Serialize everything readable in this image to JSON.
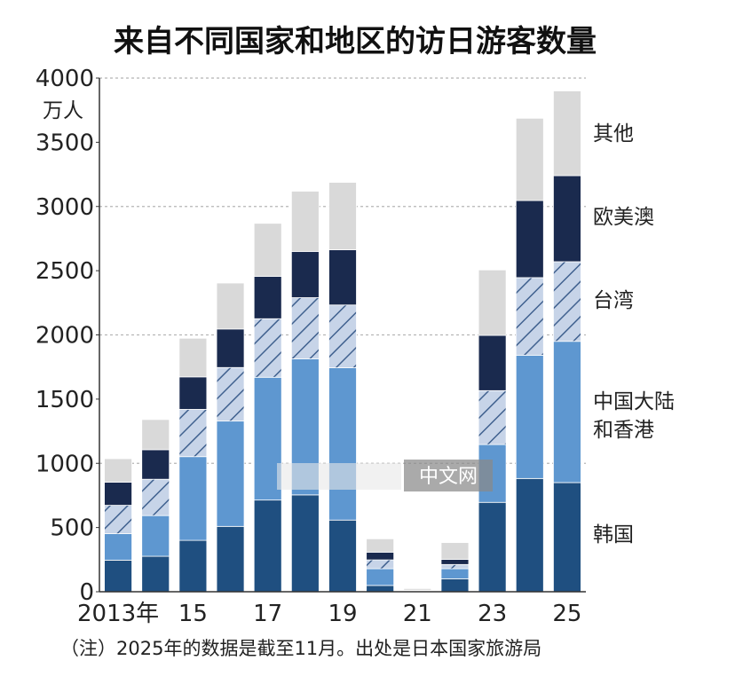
{
  "chart_data": {
    "type": "bar",
    "stacked": true,
    "title": "来自不同国家和地区的访日游客数量",
    "ylabel": "万人",
    "ylim": [
      0,
      4000
    ],
    "yticks": [
      "0",
      "500",
      "1000",
      "1500",
      "2000",
      "2500",
      "3000",
      "3500",
      "4000"
    ],
    "ytick_values": [
      0,
      500,
      1000,
      1500,
      2000,
      2500,
      3000,
      3500,
      4000
    ],
    "grid": "dashed horizontal at 1000, 2000, 3000, 4000",
    "categories": [
      "2013",
      "2014",
      "2015",
      "2016",
      "2017",
      "2018",
      "2019",
      "2020",
      "2021",
      "2022",
      "2023",
      "2024",
      "2025"
    ],
    "xtick_labels": [
      "2013年",
      "",
      "15",
      "",
      "17",
      "",
      "19",
      "",
      "21",
      "",
      "23",
      "",
      "25"
    ],
    "series": [
      {
        "name": "韩国",
        "color": "#1f4f80",
        "pattern": "solid",
        "values": [
          246,
          276,
          400,
          509,
          714,
          754,
          558,
          49,
          2,
          101,
          696,
          882,
          850
        ]
      },
      {
        "name": "中国大陆和香港",
        "color": "#5e97d0",
        "pattern": "solid",
        "values": [
          206,
          317,
          652,
          820,
          956,
          1060,
          1186,
          130,
          4,
          78,
          450,
          960,
          1100
        ]
      },
      {
        "name": "台湾",
        "color": "#bccbe2",
        "pattern": "hatched",
        "values": [
          221,
          283,
          368,
          417,
          456,
          476,
          489,
          69,
          1,
          33,
          420,
          604,
          620
        ]
      },
      {
        "name": "欧美澳",
        "color": "#1a2a4e",
        "pattern": "solid",
        "values": [
          180,
          230,
          253,
          300,
          330,
          360,
          430,
          60,
          5,
          40,
          430,
          600,
          670
        ]
      },
      {
        "name": "其他",
        "color": "#d9d9d9",
        "pattern": "solid",
        "values": [
          183,
          235,
          301,
          358,
          413,
          469,
          525,
          104,
          13,
          131,
          510,
          641,
          660
        ]
      }
    ],
    "legend_position": "right",
    "legend": [
      "其他",
      "欧美澳",
      "台湾",
      "中国大陆",
      "和香港",
      "韩国"
    ]
  },
  "footnote": "（注）2025年的数据是截至11月。出处是日本国家旅游局",
  "watermark": "中文网"
}
